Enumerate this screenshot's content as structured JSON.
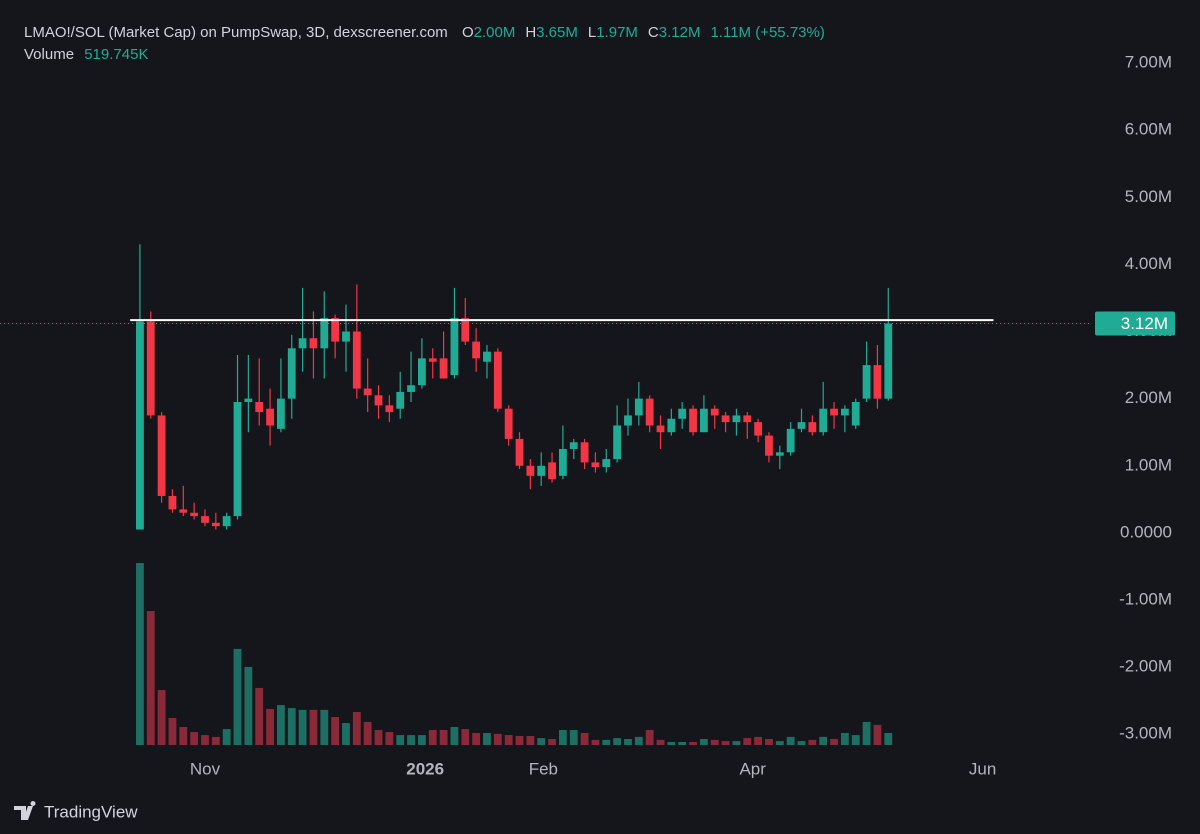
{
  "chart_data": {
    "type": "candlestick",
    "title": "LMAO!/SOL (Market Cap) on PumpSwap, 3D, dexscreener.com",
    "legend_fields": [
      {
        "key": "O",
        "value": "2.00M"
      },
      {
        "key": "H",
        "value": "3.65M"
      },
      {
        "key": "L",
        "value": "1.97M"
      },
      {
        "key": "C",
        "value": "3.12M"
      }
    ],
    "change": "1.11M (+55.73%)",
    "volume_label": "Volume",
    "volume_value": "519.745K",
    "up_color": "#22ab94",
    "down_color": "#f23645",
    "volume_up_color": "#1c6f62",
    "volume_down_color": "#8a2a38",
    "open": [
      0.05,
      3.15,
      1.75,
      0.55,
      0.35,
      0.3,
      0.25,
      0.15,
      0.1,
      0.25,
      1.95,
      1.95,
      1.85,
      1.55,
      2.0,
      2.75,
      2.9,
      2.75,
      3.2,
      2.85,
      3.0,
      2.15,
      2.05,
      1.9,
      1.85,
      2.1,
      2.2,
      2.6,
      2.6,
      2.35,
      3.2,
      2.85,
      2.55,
      2.7,
      1.85,
      1.4,
      1.0,
      0.85,
      1.05,
      0.85,
      1.25,
      1.35,
      1.05,
      0.98,
      1.1,
      1.6,
      1.75,
      2.0,
      1.6,
      1.5,
      1.7,
      1.85,
      1.5,
      1.85,
      1.75,
      1.65,
      1.75,
      1.65,
      1.45,
      1.15,
      1.2,
      1.55,
      1.65,
      1.5,
      1.85,
      1.75,
      1.6,
      2.0,
      2.5,
      2.0
    ],
    "high": [
      4.3,
      3.3,
      1.8,
      0.65,
      0.7,
      0.45,
      0.35,
      0.3,
      0.3,
      2.65,
      2.65,
      2.6,
      2.15,
      2.6,
      2.95,
      3.65,
      3.3,
      3.6,
      3.25,
      3.4,
      3.7,
      2.6,
      2.2,
      2.05,
      2.4,
      2.7,
      2.9,
      2.75,
      3.0,
      3.65,
      3.5,
      3.05,
      2.8,
      2.75,
      1.9,
      1.5,
      1.1,
      1.2,
      1.2,
      1.6,
      1.4,
      1.4,
      1.2,
      1.25,
      1.9,
      2.0,
      2.25,
      2.05,
      1.75,
      1.85,
      1.95,
      1.9,
      2.05,
      1.9,
      1.8,
      1.85,
      1.8,
      1.7,
      1.5,
      1.3,
      1.65,
      1.85,
      1.75,
      2.25,
      1.95,
      1.9,
      2.0,
      2.85,
      2.8,
      3.65
    ],
    "low": [
      0.05,
      1.7,
      0.45,
      0.3,
      0.25,
      0.2,
      0.1,
      0.05,
      0.05,
      0.2,
      1.5,
      1.6,
      1.3,
      1.5,
      1.7,
      2.4,
      2.3,
      2.3,
      2.6,
      2.4,
      2.0,
      1.8,
      1.7,
      1.65,
      1.7,
      1.95,
      2.15,
      2.3,
      2.3,
      2.3,
      2.8,
      2.4,
      2.3,
      1.8,
      1.3,
      0.95,
      0.65,
      0.7,
      0.75,
      0.8,
      1.1,
      0.95,
      0.9,
      0.9,
      1.05,
      1.45,
      1.6,
      1.5,
      1.25,
      1.45,
      1.55,
      1.45,
      1.5,
      1.55,
      1.5,
      1.45,
      1.4,
      1.35,
      1.05,
      0.95,
      1.15,
      1.5,
      1.45,
      1.45,
      1.55,
      1.5,
      1.55,
      1.95,
      1.85,
      1.97
    ],
    "close": [
      3.15,
      1.75,
      0.55,
      0.35,
      0.3,
      0.25,
      0.15,
      0.1,
      0.25,
      1.95,
      2.0,
      1.8,
      1.6,
      2.0,
      2.75,
      2.9,
      2.75,
      3.2,
      2.85,
      3.0,
      2.15,
      2.05,
      1.9,
      1.8,
      2.1,
      2.2,
      2.6,
      2.55,
      2.3,
      3.2,
      2.85,
      2.6,
      2.7,
      1.85,
      1.4,
      1.0,
      0.85,
      1.0,
      0.8,
      1.25,
      1.35,
      1.05,
      0.98,
      1.1,
      1.6,
      1.75,
      2.0,
      1.6,
      1.5,
      1.7,
      1.85,
      1.5,
      1.85,
      1.75,
      1.65,
      1.75,
      1.65,
      1.45,
      1.15,
      1.2,
      1.55,
      1.65,
      1.5,
      1.85,
      1.75,
      1.85,
      1.95,
      2.5,
      2.0,
      3.12
    ],
    "volume": [
      7880,
      5800,
      2380,
      1170,
      780,
      560,
      430,
      350,
      690,
      4160,
      3380,
      2470,
      1560,
      1730,
      1600,
      1520,
      1520,
      1520,
      1210,
      950,
      1430,
      1000,
      650,
      560,
      430,
      430,
      430,
      650,
      650,
      780,
      690,
      520,
      520,
      480,
      430,
      390,
      390,
      300,
      260,
      650,
      650,
      520,
      220,
      220,
      300,
      260,
      350,
      650,
      220,
      130,
      130,
      130,
      260,
      220,
      170,
      170,
      300,
      350,
      260,
      170,
      350,
      170,
      220,
      350,
      260,
      520,
      430,
      1000,
      870,
      519.745
    ],
    "xlim": [
      -12.9,
      87.6
    ],
    "xticks": [
      {
        "value": 6.0,
        "label": "Nov"
      },
      {
        "value": 26.3,
        "label": "2026"
      },
      {
        "value": 37.2,
        "label": "Feb"
      },
      {
        "value": 56.5,
        "label": "Apr"
      },
      {
        "value": 77.7,
        "label": "Jun"
      }
    ],
    "bold_xtick": "2026",
    "ylim": [
      -3.16,
      7.79
    ],
    "yticks": [
      {
        "value": 7,
        "label": "7.00M"
      },
      {
        "value": 6,
        "label": "6.00M"
      },
      {
        "value": 5,
        "label": "5.00M"
      },
      {
        "value": 4,
        "label": "4.00M"
      },
      {
        "value": 3,
        "label": "3.00M"
      },
      {
        "value": 2,
        "label": "2.00M"
      },
      {
        "value": 1,
        "label": "1.00M"
      },
      {
        "value": 0,
        "label": "0.0000"
      },
      {
        "value": -1,
        "label": "-1.00M"
      },
      {
        "value": -2,
        "label": "-2.00M"
      },
      {
        "value": -3,
        "label": "-3.00M"
      }
    ],
    "last_price": {
      "value": 3.12,
      "label": "3.12M"
    },
    "horizontal_line": {
      "value": 3.17,
      "from": -0.9,
      "to": 78.7
    },
    "brand": "TradingView"
  }
}
